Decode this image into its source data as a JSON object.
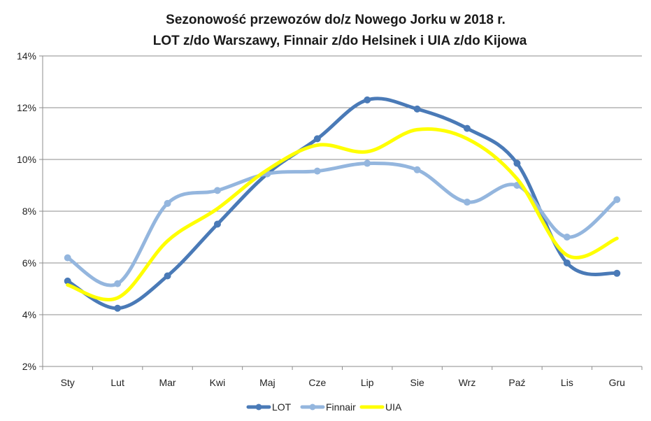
{
  "chart_data": {
    "type": "line",
    "title_lines": [
      "Sezonowość przewozów do/z Nowego Jorku w 2018 r.",
      "LOT z/do Warszawy, Finnair z/do Helsinek i UIA z/do Kijowa"
    ],
    "xlabel": "",
    "ylabel": "",
    "categories": [
      "Sty",
      "Lut",
      "Mar",
      "Kwi",
      "Maj",
      "Cze",
      "Lip",
      "Sie",
      "Wrz",
      "Paź",
      "Lis",
      "Gru"
    ],
    "ylim": [
      2,
      14
    ],
    "yticks": [
      {
        "value": 2,
        "label": "2%"
      },
      {
        "value": 4,
        "label": "4%"
      },
      {
        "value": 6,
        "label": "6%"
      },
      {
        "value": 8,
        "label": "8%"
      },
      {
        "value": 10,
        "label": "10%"
      },
      {
        "value": 12,
        "label": "12%"
      },
      {
        "value": 14,
        "label": "14%"
      }
    ],
    "grid": true,
    "legend_position": "bottom",
    "smooth": true,
    "series": [
      {
        "name": "LOT",
        "color": "#4a7ab7",
        "markers": true,
        "values": [
          5.3,
          4.25,
          5.5,
          7.5,
          9.45,
          10.8,
          12.3,
          11.95,
          11.2,
          9.85,
          6.0,
          5.6
        ]
      },
      {
        "name": "Finnair",
        "color": "#94b6de",
        "markers": true,
        "values": [
          6.2,
          5.2,
          8.3,
          8.8,
          9.45,
          9.55,
          9.85,
          9.6,
          8.35,
          9.0,
          7.0,
          8.45
        ]
      },
      {
        "name": "UIA",
        "color": "#ffff00",
        "markers": false,
        "values": [
          5.15,
          4.65,
          6.85,
          8.1,
          9.6,
          10.55,
          10.3,
          11.15,
          10.8,
          9.25,
          6.3,
          6.95
        ]
      }
    ]
  }
}
